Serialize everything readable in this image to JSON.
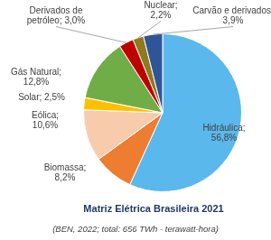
{
  "chart_data": {
    "type": "pie",
    "title": "Matriz Elétrica Brasileira 2021",
    "subtitle": "(BEN, 2022; total: 656 TWh - terawatt-hora)",
    "categories": [
      "Hidráulica",
      "Biomassa",
      "Eólica",
      "Solar",
      "Gás Natural",
      "Derivados de petróleo",
      "Nuclear",
      "Carvão e derivados"
    ],
    "values": [
      56.8,
      8.2,
      10.6,
      2.5,
      12.8,
      3.0,
      2.2,
      3.9
    ],
    "value_labels": [
      "Hidráulica; 56,8%",
      "Biomassa; 8,2%",
      "Eólica; 10,6%",
      "Solar; 2,5%",
      "Gás Natural; 12,8%",
      "Derivados de petróleo; 3,0%",
      "Nuclear; 2,2%",
      "Carvão e derivados; 3,9%"
    ],
    "colors": [
      "#5bb8ec",
      "#ed7d31",
      "#f8cbad",
      "#ffc000",
      "#70ad47",
      "#c00000",
      "#8f7a1c",
      "#2f5597"
    ],
    "data_labels": true
  }
}
